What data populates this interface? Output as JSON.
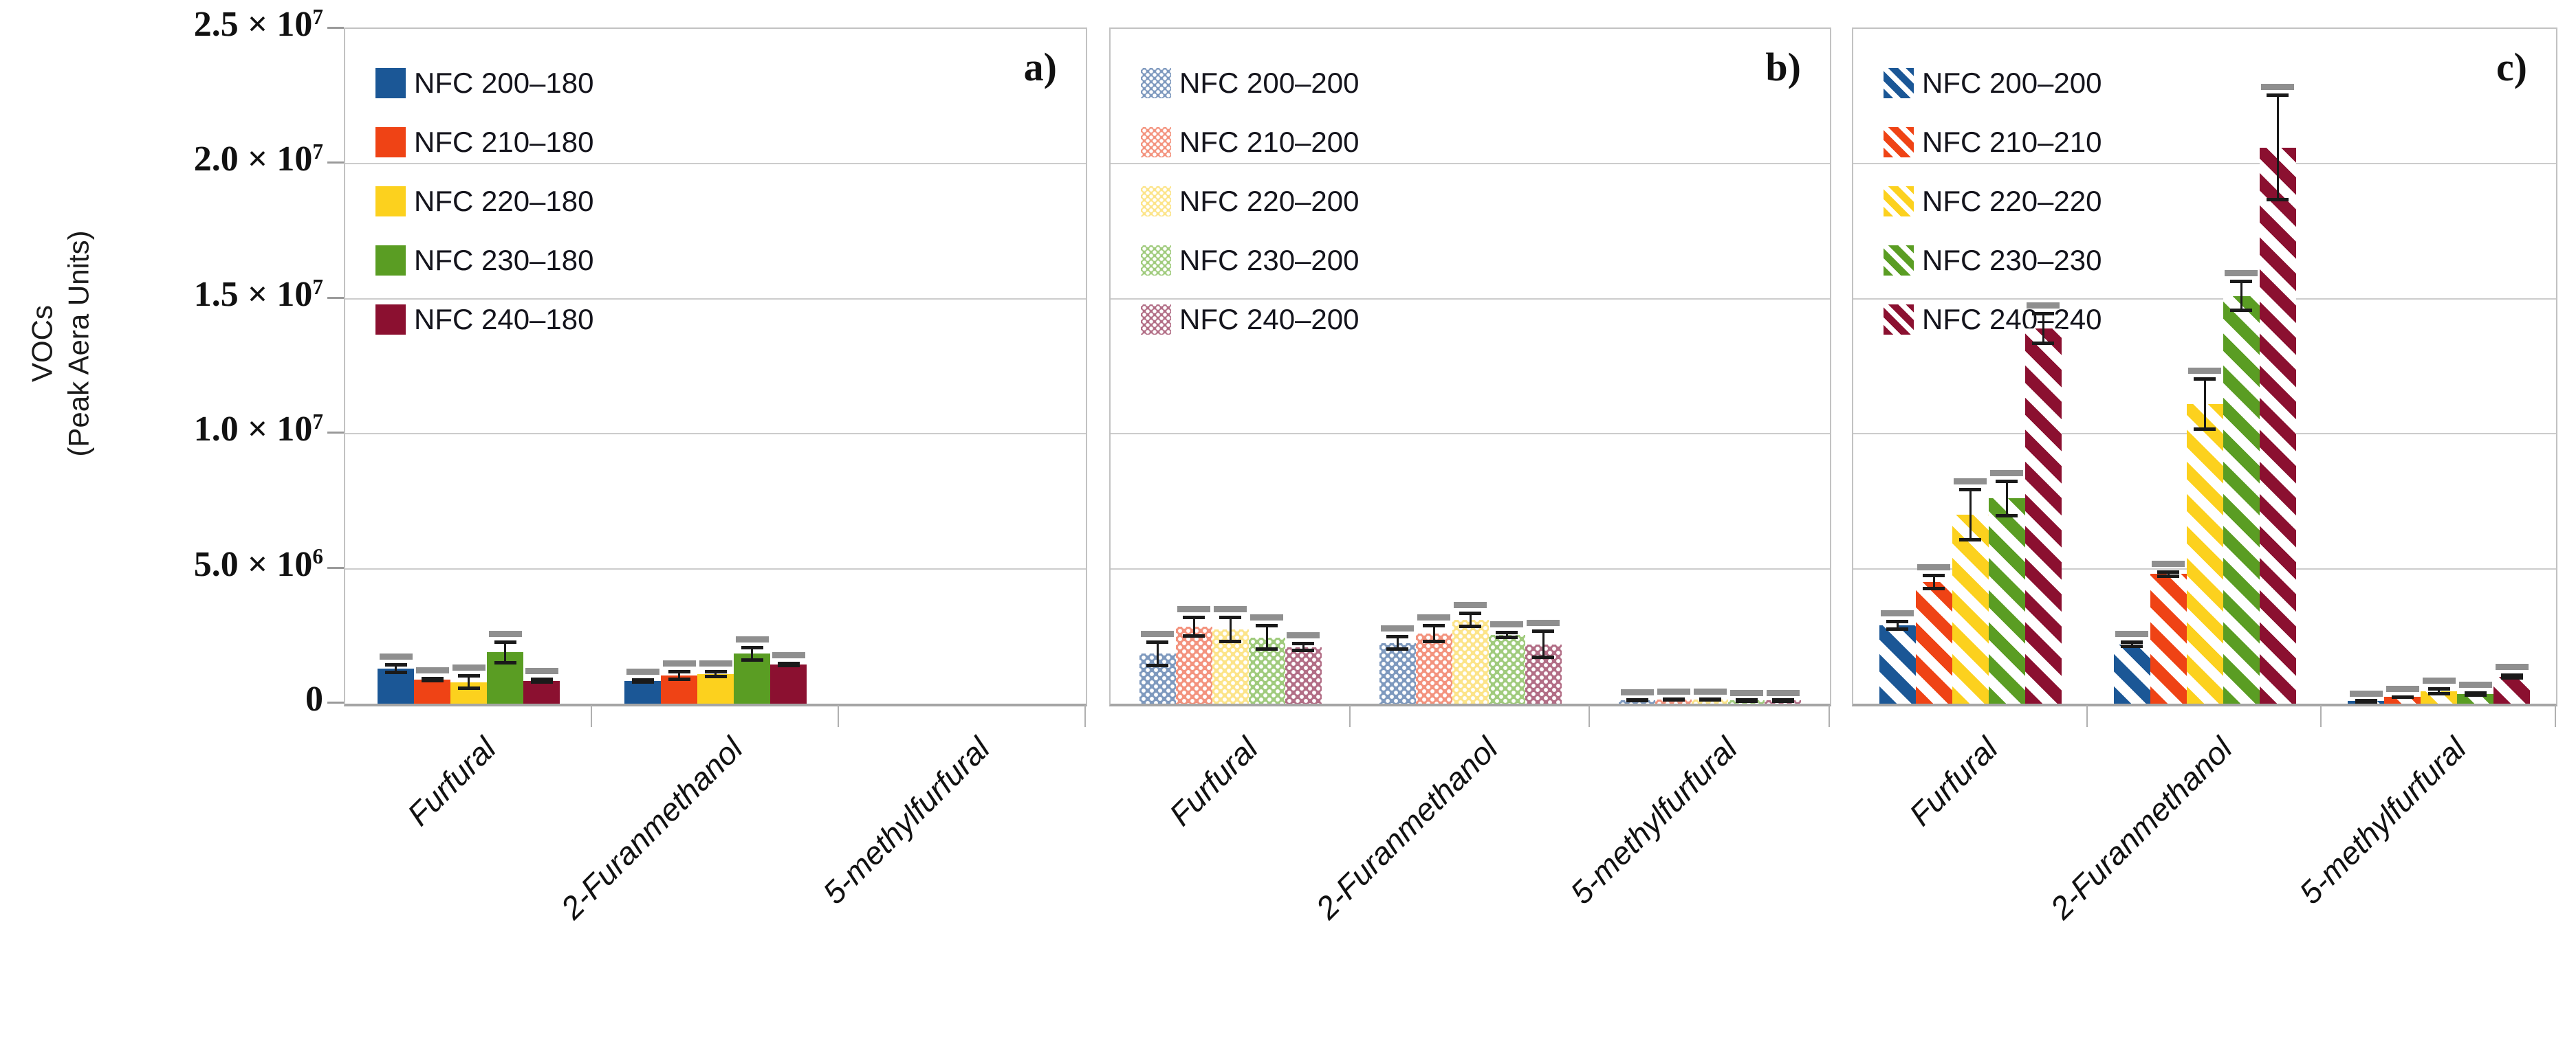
{
  "chart_data": {
    "type": "bar",
    "title": "",
    "ylabel_line1": "VOCs",
    "ylabel_line2": "(Peak Aera Units)",
    "value_units": "Peak Area Units",
    "ylim": [
      0,
      25000000
    ],
    "grid": true,
    "legend_position": "top-left-inside-each-panel",
    "y_ticks": [
      "2.5 × 10^7",
      "2.0 × 10^7",
      "1.5 × 10^7",
      "1.0 × 10^7",
      "5.0 × 10^6",
      "0"
    ],
    "categories": [
      "Furfural",
      "2-Furanmethanol",
      "5-methylfurfural"
    ],
    "panels": [
      {
        "letter": "a)",
        "pattern": "solid",
        "series": [
          {
            "name": "NFC 200–180",
            "color": "#1b5796",
            "values": [
              1300000,
              850000,
              0
            ],
            "errors": [
              200000,
              100000,
              0
            ]
          },
          {
            "name": "NFC 210–180",
            "color": "#ef4315",
            "values": [
              900000,
              1050000,
              0
            ],
            "errors": [
              100000,
              200000,
              0
            ]
          },
          {
            "name": "NFC 220–180",
            "color": "#fcd11e",
            "values": [
              800000,
              1100000,
              0
            ],
            "errors": [
              300000,
              150000,
              0
            ]
          },
          {
            "name": "NFC 230–180",
            "color": "#5a9d23",
            "values": [
              1900000,
              1850000,
              0
            ],
            "errors": [
              450000,
              300000,
              0
            ]
          },
          {
            "name": "NFC 240–180",
            "color": "#8b1030",
            "values": [
              850000,
              1450000,
              0
            ],
            "errors": [
              120000,
              100000,
              0
            ]
          }
        ]
      },
      {
        "letter": "b)",
        "pattern": "dots",
        "series": [
          {
            "name": "NFC 200–200",
            "color": "#7e99be",
            "values": [
              1850000,
              2250000,
              120000
            ],
            "errors": [
              500000,
              300000,
              50000
            ]
          },
          {
            "name": "NFC 210–200",
            "color": "#f3937e",
            "values": [
              2850000,
              2600000,
              150000
            ],
            "errors": [
              400000,
              350000,
              50000
            ]
          },
          {
            "name": "NFC 220–200",
            "color": "#fce489",
            "values": [
              2750000,
              3100000,
              150000
            ],
            "errors": [
              500000,
              300000,
              60000
            ]
          },
          {
            "name": "NFC 230–200",
            "color": "#a0cb7d",
            "values": [
              2450000,
              2550000,
              120000
            ],
            "errors": [
              500000,
              150000,
              40000
            ]
          },
          {
            "name": "NFC 240–200",
            "color": "#b26e86",
            "values": [
              2100000,
              2200000,
              120000
            ],
            "errors": [
              200000,
              550000,
              40000
            ]
          }
        ]
      },
      {
        "letter": "c)",
        "pattern": "stripes",
        "series": [
          {
            "name": "NFC 200–200",
            "color": "#1b5796",
            "values": [
              2900000,
              2200000,
              100000
            ],
            "errors": [
              200000,
              150000,
              40000
            ]
          },
          {
            "name": "NFC 210–210",
            "color": "#ef4315",
            "values": [
              4500000,
              4800000,
              250000
            ],
            "errors": [
              300000,
              150000,
              60000
            ]
          },
          {
            "name": "NFC 220–220",
            "color": "#fcd11e",
            "values": [
              7000000,
              11100000,
              450000
            ],
            "errors": [
              1000000,
              1000000,
              150000
            ]
          },
          {
            "name": "NFC 230–230",
            "color": "#5a9d23",
            "values": [
              7600000,
              15100000,
              350000
            ],
            "errors": [
              700000,
              600000,
              100000
            ]
          },
          {
            "name": "NFC 240–240",
            "color": "#8b1030",
            "values": [
              13900000,
              20600000,
              1000000
            ],
            "errors": [
              600000,
              2000000,
              120000
            ]
          }
        ]
      }
    ],
    "error_bar_style": {
      "line_color": "#1a1a1a",
      "top_cap_color": "#8f8f8f"
    }
  }
}
